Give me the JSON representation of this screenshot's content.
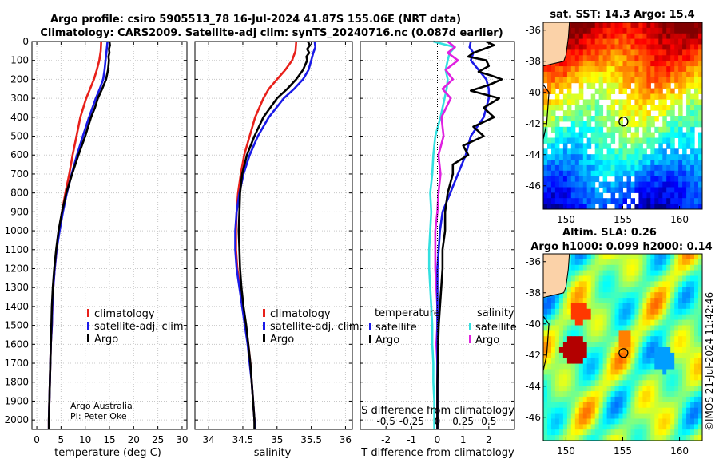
{
  "title": {
    "line1": "Argo profile: csiro 5905513_78 16-Jul-2024 41.87S 155.06E (NRT data)",
    "line2": "Climatology: CARS2009. Satellite-adj clim: synTS_20240716.nc (0.087d earlier)"
  },
  "depth_axis": {
    "range": [
      0,
      2050
    ],
    "ticks": [
      0,
      100,
      200,
      300,
      400,
      500,
      600,
      700,
      800,
      900,
      1000,
      1100,
      1200,
      1300,
      1400,
      1500,
      1600,
      1700,
      1800,
      1900,
      2000
    ]
  },
  "colors": {
    "climatology": "#e8201a",
    "satellite": "#1a1ae8",
    "argo": "#000000",
    "sal_sat": "#33e0e0",
    "sal_argo": "#e020e0"
  },
  "chart_data": [
    {
      "type": "line",
      "panel": "temperature",
      "xlabel": "temperature (deg C)",
      "xlim": [
        -1,
        31
      ],
      "xticks": [
        0,
        5,
        10,
        15,
        20,
        25,
        30
      ],
      "legend": [
        "climatology",
        "satellite-adj. clim.",
        "Argo"
      ],
      "legend_position": "lower-right",
      "annotation": [
        "Argo Australia",
        "PI: Peter Oke"
      ],
      "series": [
        {
          "name": "climatology",
          "depth": [
            0,
            50,
            100,
            150,
            200,
            250,
            300,
            400,
            500,
            600,
            700,
            800,
            900,
            1000,
            1100,
            1200,
            1300,
            1400,
            1500,
            1600,
            1700,
            1800,
            1900,
            2000,
            2050
          ],
          "values": [
            13.3,
            13.2,
            12.9,
            12.4,
            11.8,
            11.0,
            10.2,
            9.0,
            8.2,
            7.4,
            6.7,
            5.9,
            5.2,
            4.6,
            4.1,
            3.7,
            3.4,
            3.2,
            3.1,
            2.9,
            2.8,
            2.7,
            2.6,
            2.5,
            2.5
          ]
        },
        {
          "name": "satellite-adj. clim.",
          "depth": [
            0,
            50,
            100,
            150,
            200,
            250,
            300,
            400,
            500,
            600,
            700,
            800,
            900,
            1000,
            1100,
            1200,
            1300,
            1400,
            1500,
            1600,
            1700,
            1800,
            1900,
            2000,
            2050
          ],
          "values": [
            14.6,
            14.4,
            14.2,
            14.0,
            13.7,
            13.0,
            12.2,
            10.8,
            9.5,
            8.3,
            7.2,
            6.2,
            5.4,
            4.7,
            4.1,
            3.7,
            3.4,
            3.2,
            3.1,
            2.9,
            2.8,
            2.7,
            2.6,
            2.5,
            2.5
          ]
        },
        {
          "name": "Argo",
          "depth": [
            0,
            20,
            40,
            60,
            80,
            100,
            150,
            200,
            250,
            300,
            350,
            400,
            500,
            600,
            700,
            800,
            900,
            1000,
            1100,
            1200,
            1300,
            1400,
            1500,
            1600,
            1700,
            1800,
            1900,
            2000,
            2050
          ],
          "values": [
            15.0,
            15.1,
            14.9,
            15.0,
            14.8,
            14.9,
            14.7,
            14.3,
            13.5,
            12.6,
            12.0,
            11.2,
            10.0,
            8.6,
            7.3,
            6.1,
            5.2,
            4.5,
            4.0,
            3.6,
            3.3,
            3.1,
            3.0,
            2.9,
            2.8,
            2.7,
            2.6,
            2.5,
            2.5
          ]
        }
      ]
    },
    {
      "type": "line",
      "panel": "salinity",
      "xlabel": "salinity",
      "xlim": [
        33.8,
        36.1
      ],
      "xticks": [
        34,
        34.5,
        35,
        35.5,
        36
      ],
      "legend": [
        "climatology",
        "satellite-adj. clim.",
        "Argo"
      ],
      "legend_position": "lower-right",
      "series": [
        {
          "name": "climatology",
          "depth": [
            0,
            50,
            100,
            150,
            200,
            250,
            300,
            400,
            500,
            600,
            700,
            800,
            900,
            1000,
            1100,
            1200,
            1300,
            1400,
            1500,
            1600,
            1700,
            1800,
            1900,
            2000,
            2050
          ],
          "values": [
            35.28,
            35.27,
            35.22,
            35.12,
            35.0,
            34.88,
            34.8,
            34.68,
            34.6,
            34.52,
            34.47,
            34.43,
            34.41,
            34.4,
            34.4,
            34.42,
            34.46,
            34.5,
            34.54,
            34.58,
            34.61,
            34.63,
            34.65,
            34.67,
            34.68
          ]
        },
        {
          "name": "satellite-adj. clim.",
          "depth": [
            0,
            30,
            60,
            100,
            150,
            200,
            250,
            300,
            400,
            500,
            600,
            700,
            800,
            900,
            1000,
            1100,
            1200,
            1300,
            1400,
            1500,
            1600,
            1700,
            1800,
            1900,
            2000,
            2050
          ],
          "values": [
            35.55,
            35.56,
            35.53,
            35.5,
            35.46,
            35.38,
            35.25,
            35.1,
            34.88,
            34.72,
            34.6,
            34.51,
            34.45,
            34.41,
            34.39,
            34.39,
            34.41,
            34.45,
            34.49,
            34.53,
            34.57,
            34.6,
            34.63,
            34.65,
            34.67,
            34.68
          ]
        },
        {
          "name": "Argo",
          "depth": [
            0,
            20,
            40,
            60,
            80,
            100,
            150,
            200,
            250,
            300,
            350,
            400,
            500,
            600,
            700,
            800,
            900,
            1000,
            1100,
            1200,
            1300,
            1400,
            1500,
            1600,
            1700,
            1800,
            1900,
            2000,
            2050
          ],
          "values": [
            35.45,
            35.48,
            35.44,
            35.47,
            35.43,
            35.44,
            35.38,
            35.28,
            35.15,
            35.0,
            34.9,
            34.8,
            34.67,
            34.56,
            34.49,
            34.46,
            34.45,
            34.44,
            34.45,
            34.46,
            34.48,
            34.51,
            34.55,
            34.58,
            34.61,
            34.63,
            34.65,
            34.67,
            34.67
          ]
        }
      ]
    },
    {
      "type": "line",
      "panel": "difference",
      "xlabel": "T difference from climatology",
      "xlim": [
        -3,
        3
      ],
      "xticks": [
        -2,
        -1,
        0,
        1,
        2
      ],
      "x2label": "S difference from climatology",
      "x2ticks": [
        "-0.5",
        "-0.25",
        "0",
        "0.25",
        "0.5"
      ],
      "legend_temperature": {
        "title": "temperature",
        "items": [
          "satellite",
          "Argo"
        ]
      },
      "legend_salinity": {
        "title": "salinity",
        "items": [
          "satellite",
          "Argo"
        ]
      },
      "series": [
        {
          "name": "temperature satellite",
          "depth": [
            0,
            30,
            60,
            100,
            150,
            200,
            250,
            300,
            400,
            500,
            600,
            700,
            800,
            900,
            1000,
            1200,
            1400,
            1600,
            1800,
            2000,
            2050
          ],
          "values": [
            1.3,
            1.25,
            1.4,
            1.3,
            1.6,
            1.9,
            2.0,
            2.0,
            1.8,
            1.3,
            1.1,
            0.8,
            0.5,
            0.2,
            0.1,
            0.0,
            0.0,
            0.0,
            0.0,
            0.0,
            0.0
          ]
        },
        {
          "name": "temperature Argo",
          "depth": [
            0,
            20,
            40,
            60,
            80,
            100,
            130,
            160,
            180,
            200,
            230,
            260,
            300,
            350,
            400,
            450,
            500,
            550,
            600,
            650,
            700,
            800,
            900,
            1000,
            1100,
            1200,
            1300,
            1400,
            1500,
            1600,
            1700,
            1800,
            1900,
            2000,
            2050
          ],
          "values": [
            1.9,
            2.2,
            1.8,
            1.4,
            1.2,
            1.9,
            2.0,
            1.6,
            2.1,
            2.5,
            2.0,
            1.3,
            2.4,
            1.8,
            2.2,
            1.4,
            1.8,
            1.0,
            1.2,
            0.6,
            0.6,
            0.4,
            0.3,
            0.3,
            0.2,
            0.2,
            0.15,
            0.1,
            0.05,
            0.03,
            0.02,
            0.0,
            0.0,
            0.0,
            0.0
          ]
        },
        {
          "name": "salinity satellite",
          "depth": [
            0,
            30,
            60,
            100,
            150,
            200,
            250,
            300,
            400,
            500,
            600,
            700,
            800,
            900,
            1000,
            1100,
            1200,
            1300,
            1400,
            1500,
            1600,
            1700,
            1800,
            1900,
            2000,
            2050
          ],
          "values": [
            -0.04,
            0.17,
            0.12,
            0.1,
            0.08,
            0.1,
            0.09,
            0.07,
            0.03,
            -0.02,
            -0.04,
            -0.05,
            -0.07,
            -0.06,
            -0.07,
            -0.08,
            -0.08,
            -0.07,
            -0.06,
            -0.05,
            -0.05,
            -0.04,
            -0.04,
            -0.03,
            -0.03,
            -0.03
          ]
        },
        {
          "name": "salinity Argo",
          "depth": [
            0,
            30,
            60,
            100,
            150,
            200,
            250,
            300,
            400,
            500,
            600,
            700,
            800,
            900,
            1000,
            1100,
            1200,
            1300,
            1400,
            1500,
            1600,
            1700,
            1800,
            1900,
            2000,
            2050
          ],
          "values": [
            0.1,
            0.17,
            0.1,
            0.2,
            0.08,
            0.15,
            0.05,
            0.13,
            0.04,
            0.06,
            0.01,
            0.03,
            0.01,
            0.0,
            -0.02,
            -0.02,
            -0.02,
            -0.01,
            0.0,
            0.0,
            -0.01,
            0.0,
            0.0,
            0.0,
            0.0,
            0.0
          ]
        }
      ]
    },
    {
      "type": "heatmap",
      "panel": "sst_map",
      "title": "sat. SST: 14.3 Argo: 15.4",
      "xticks": [
        150,
        155,
        160
      ],
      "yticks": [
        -36,
        -38,
        -40,
        -42,
        -44,
        -46
      ],
      "xlim": [
        148,
        162
      ],
      "ylim": [
        -47.5,
        -35.5
      ],
      "marker": {
        "lon": 155.06,
        "lat": -41.87
      }
    },
    {
      "type": "heatmap",
      "panel": "sla_map",
      "title_line1": "Altim. SLA: 0.26",
      "title_line2": "Argo h1000: 0.099 h2000: 0.14",
      "xticks": [
        150,
        155,
        160
      ],
      "yticks": [
        -36,
        -38,
        -40,
        -42,
        -44,
        -46
      ],
      "xlim": [
        148,
        162
      ],
      "ylim": [
        -47.5,
        -35.5
      ],
      "marker": {
        "lon": 155.06,
        "lat": -41.87
      }
    }
  ],
  "footer": {
    "credit": "©IMOS 21-Jul-2024 11:42:46"
  }
}
